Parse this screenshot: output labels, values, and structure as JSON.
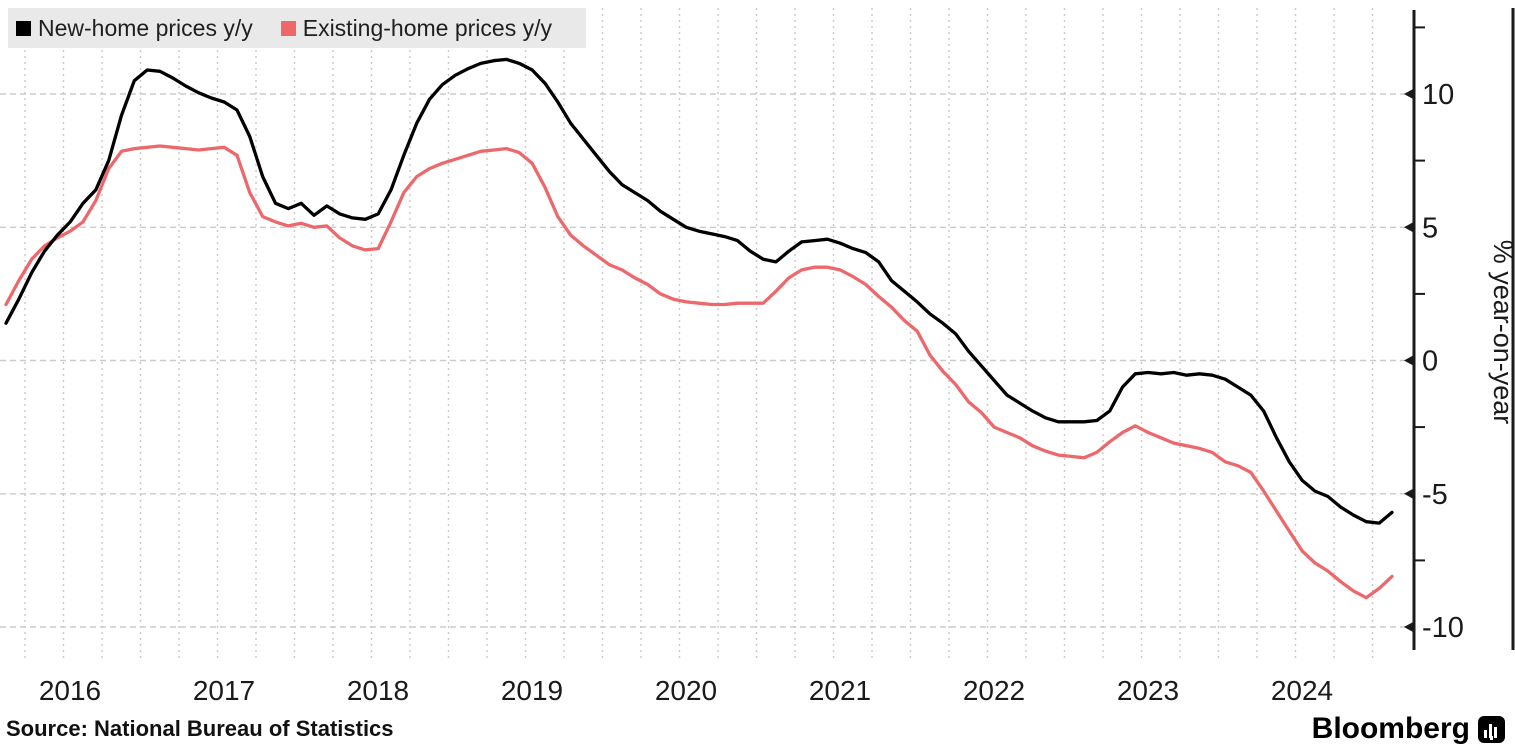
{
  "chart_data": {
    "type": "line",
    "ylabel": "% year-on-year",
    "x_tick_labels": [
      "2016",
      "2017",
      "2018",
      "2019",
      "2020",
      "2021",
      "2022",
      "2023",
      "2024"
    ],
    "y_ticks": [
      10,
      5,
      0,
      -5,
      -10
    ],
    "y_minor_ticks": [
      12.5,
      7.5,
      2.5,
      -2.5,
      -7.5
    ],
    "ylim": [
      -11,
      13.2
    ],
    "x_start": "2015-08",
    "x_end": "2024-08",
    "frequency": "monthly",
    "grid": {
      "horizontal": "dashed",
      "vertical": "dotted-quarterly"
    },
    "legend_position": "top-left",
    "series": [
      {
        "name": "New-home prices y/y",
        "color": "#000000",
        "values": [
          1.4,
          2.3,
          3.3,
          4.1,
          4.7,
          5.2,
          5.9,
          6.4,
          7.5,
          9.2,
          10.5,
          10.9,
          10.85,
          10.6,
          10.3,
          10.05,
          9.85,
          9.7,
          9.4,
          8.4,
          6.9,
          5.9,
          5.7,
          5.9,
          5.45,
          5.8,
          5.5,
          5.35,
          5.3,
          5.5,
          6.4,
          7.7,
          8.9,
          9.8,
          10.35,
          10.7,
          10.95,
          11.15,
          11.25,
          11.3,
          11.15,
          10.9,
          10.4,
          9.7,
          8.9,
          8.3,
          7.7,
          7.1,
          6.6,
          6.3,
          6.0,
          5.6,
          5.3,
          5.0,
          4.85,
          4.75,
          4.65,
          4.5,
          4.1,
          3.8,
          3.7,
          4.1,
          4.45,
          4.5,
          4.55,
          4.4,
          4.2,
          4.05,
          3.7,
          3.0,
          2.6,
          2.2,
          1.75,
          1.4,
          1.0,
          0.35,
          -0.2,
          -0.75,
          -1.3,
          -1.6,
          -1.9,
          -2.15,
          -2.3,
          -2.3,
          -2.3,
          -2.25,
          -1.9,
          -1.0,
          -0.5,
          -0.45,
          -0.5,
          -0.45,
          -0.55,
          -0.5,
          -0.55,
          -0.7,
          -1.0,
          -1.3,
          -1.9,
          -2.9,
          -3.8,
          -4.5,
          -4.9,
          -5.1,
          -5.5,
          -5.8,
          -6.05,
          -6.1,
          -5.7
        ]
      },
      {
        "name": "Existing-home prices y/y",
        "color": "#ec686b",
        "values": [
          2.1,
          3.0,
          3.8,
          4.3,
          4.6,
          4.85,
          5.2,
          6.0,
          7.2,
          7.85,
          7.95,
          8.0,
          8.05,
          8.0,
          7.95,
          7.9,
          7.95,
          8.0,
          7.7,
          6.3,
          5.4,
          5.2,
          5.05,
          5.15,
          5.0,
          5.05,
          4.6,
          4.3,
          4.15,
          4.2,
          5.2,
          6.3,
          6.9,
          7.2,
          7.4,
          7.55,
          7.7,
          7.85,
          7.9,
          7.95,
          7.8,
          7.4,
          6.5,
          5.4,
          4.7,
          4.3,
          3.95,
          3.6,
          3.4,
          3.1,
          2.85,
          2.5,
          2.3,
          2.2,
          2.15,
          2.1,
          2.1,
          2.15,
          2.15,
          2.15,
          2.6,
          3.1,
          3.4,
          3.5,
          3.5,
          3.4,
          3.15,
          2.85,
          2.4,
          2.0,
          1.5,
          1.1,
          0.2,
          -0.4,
          -0.9,
          -1.55,
          -1.95,
          -2.5,
          -2.7,
          -2.9,
          -3.2,
          -3.4,
          -3.55,
          -3.6,
          -3.65,
          -3.45,
          -3.05,
          -2.7,
          -2.45,
          -2.7,
          -2.9,
          -3.1,
          -3.2,
          -3.3,
          -3.45,
          -3.8,
          -3.95,
          -4.2,
          -4.9,
          -5.65,
          -6.4,
          -7.15,
          -7.6,
          -7.9,
          -8.3,
          -8.65,
          -8.9,
          -8.55,
          -8.1
        ]
      }
    ]
  },
  "source": {
    "text": "Source: National Bureau of Statistics"
  },
  "branding": {
    "wordmark": "Bloomberg"
  }
}
